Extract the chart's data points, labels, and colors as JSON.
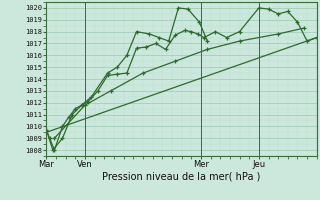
{
  "xlabel": "Pression niveau de la mer( hPa )",
  "bg_color": "#cce8dc",
  "grid_color_major": "#99ccb3",
  "grid_color_minor": "#b8ddc9",
  "line_color": "#2d6a2d",
  "ylim": [
    1007.5,
    1020.5
  ],
  "yticks": [
    1008,
    1009,
    1010,
    1011,
    1012,
    1013,
    1014,
    1015,
    1016,
    1017,
    1018,
    1019,
    1020
  ],
  "xtick_labels": [
    "Mar",
    "Ven",
    "Mer",
    "Jeu"
  ],
  "xtick_positions": [
    0,
    24,
    96,
    132
  ],
  "xlim": [
    0,
    168
  ],
  "vline_positions": [
    0,
    24,
    96,
    132
  ],
  "series1_x": [
    0,
    2,
    5,
    10,
    14,
    18,
    22,
    26,
    32,
    38,
    44,
    50,
    56,
    62,
    68,
    74,
    80,
    86,
    90,
    94,
    98,
    105,
    112,
    120,
    132,
    138,
    144,
    150,
    156,
    162,
    168
  ],
  "series1_y": [
    1009.7,
    1009.0,
    1008.0,
    1010.0,
    1010.8,
    1011.5,
    1011.8,
    1012.1,
    1013.0,
    1014.3,
    1014.4,
    1014.5,
    1016.6,
    1016.7,
    1017.0,
    1016.5,
    1017.7,
    1018.1,
    1018.0,
    1017.8,
    1017.5,
    1018.0,
    1017.5,
    1018.0,
    1020.0,
    1019.9,
    1019.5,
    1019.7,
    1018.8,
    1017.2,
    1017.5
  ],
  "series2_x": [
    0,
    4,
    10,
    16,
    22,
    28,
    38,
    44,
    50,
    56,
    64,
    70,
    76,
    82,
    88,
    95,
    100
  ],
  "series2_y": [
    1009.7,
    1008.0,
    1009.0,
    1011.0,
    1011.8,
    1012.5,
    1014.5,
    1015.0,
    1016.0,
    1018.0,
    1017.8,
    1017.5,
    1017.2,
    1020.0,
    1019.9,
    1018.8,
    1017.2
  ],
  "series3_x": [
    0,
    168
  ],
  "series3_y": [
    1009.5,
    1017.5
  ],
  "series4_x": [
    5,
    24,
    40,
    60,
    80,
    100,
    120,
    144,
    160
  ],
  "series4_y": [
    1009.0,
    1011.8,
    1013.0,
    1014.5,
    1015.5,
    1016.5,
    1017.2,
    1017.8,
    1018.3
  ]
}
